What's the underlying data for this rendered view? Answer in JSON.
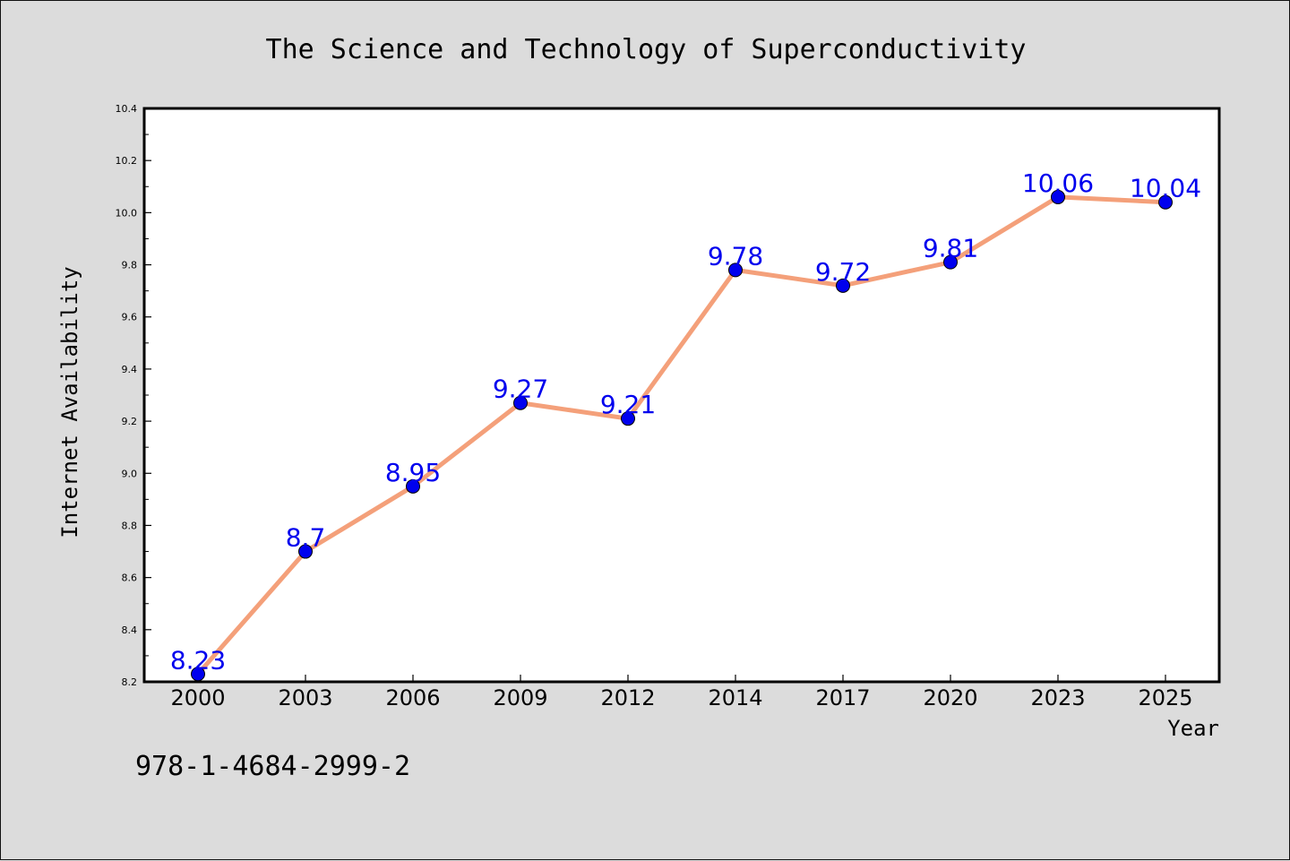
{
  "chart_data": {
    "type": "line",
    "title": "The Science and Technology of Superconductivity",
    "xlabel": "Year",
    "ylabel": "Internet Availability",
    "categories": [
      "2000",
      "2003",
      "2006",
      "2009",
      "2012",
      "2014",
      "2017",
      "2020",
      "2023",
      "2025"
    ],
    "series": [
      {
        "values": [
          8.23,
          8.7,
          8.95,
          9.27,
          9.21,
          9.78,
          9.72,
          9.81,
          10.06,
          10.04
        ],
        "labels": [
          "8.23",
          "8.7",
          "8.95",
          "9.27",
          "9.21",
          "9.78",
          "9.72",
          "9.81",
          "10.06",
          "10.04"
        ],
        "line_color": "#f4a07a",
        "marker_color": "#0000ee",
        "label_color": "#0000ee"
      }
    ],
    "ylim": [
      8.2,
      10.4
    ],
    "yticks": [
      "8.2",
      "8.4",
      "8.6",
      "8.8",
      "9.0",
      "9.2",
      "9.4",
      "9.6",
      "9.8",
      "10.0",
      "10.2",
      "10.4"
    ],
    "grid": false,
    "legend": "none"
  },
  "footer": {
    "isbn": "978-1-4684-2999-2"
  },
  "colors": {
    "background": "#dcdcdc",
    "plot_background": "#ffffff",
    "axis": "#000000"
  }
}
